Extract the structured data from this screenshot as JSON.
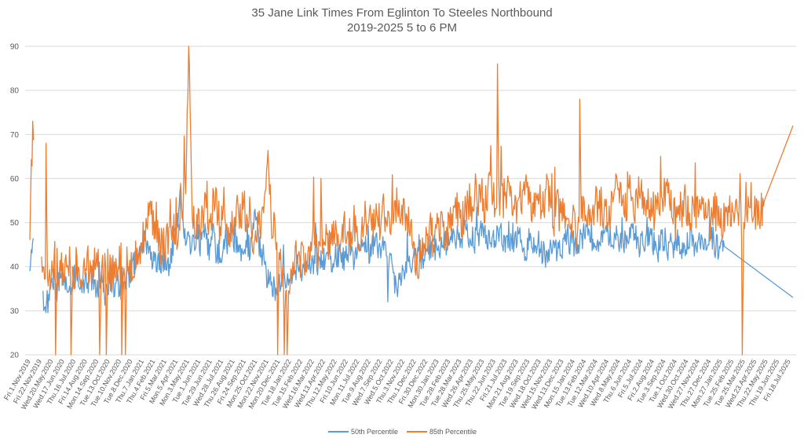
{
  "chart_data": {
    "type": "line",
    "title": "35 Jane Link Times From Eglinton To Steeles Northbound",
    "subtitle": "2019-2025 5 to 6 PM",
    "xlabel": "",
    "ylabel": "",
    "ylim": [
      20,
      90
    ],
    "yticks": [
      20,
      30,
      40,
      50,
      60,
      70,
      80,
      90
    ],
    "grid": true,
    "legend_position": "bottom",
    "x_tick_labels": [
      "Fri.1.Nov.2019",
      "Fri.22.Nov.2019",
      "Wed.20.May.2020",
      "Wed.17.Jun.2020",
      "Thu.16.Jul.2020",
      "Fri.14.Aug.2020",
      "Mon.14.Sep.2020",
      "Tue.13.Oct.2020",
      "Tue.10.Nov.2020",
      "Tue.8.Dec.2020",
      "Thu.7.Jan.2021",
      "Thu.4.Feb.2021",
      "Fri.5.Mar.2021",
      "Mon.5.Apr.2021",
      "Mon.3.May.2021",
      "Tue.1.Jun.2021",
      "Tue.29.Jun.2021",
      "Wed.28.Jul.2021",
      "Thu.26.Aug.2021",
      "Fri.24.Sep.2021",
      "Mon.25.Oct.2021",
      "Mon.22.Nov.2021",
      "Mon.20.Dec.2021",
      "Tue.18.Jan.2022",
      "Tue.15.Feb.2022",
      "Wed.16.Mar.2022",
      "Wed.13.Apr.2022",
      "Thu.12.May.2022",
      "Fri.10.Jun.2022",
      "Mon.11.Jul.2022",
      "Tue.9.Aug.2022",
      "Wed.7.Sep.2022",
      "Wed.5.Oct.2022",
      "Thu.3.Nov.2022",
      "Thu.1.Dec.2022",
      "Fri.30.Dec.2022",
      "Mon.30.Jan.2023",
      "Tue.28.Feb.2023",
      "Tue.28.Mar.2023",
      "Wed.26.Apr.2023",
      "Thu.25.May.2023",
      "Thu.22.Jun.2023",
      "Fri.21.Jul.2023",
      "Mon.21.Aug.2023",
      "Tue.19.Sep.2023",
      "Wed.18.Oct.2023",
      "Wed.15.Nov.2023",
      "Wed.13.Dec.2023",
      "Mon.15.Jan.2024",
      "Tue.13.Feb.2024",
      "Tue.12.Mar.2024",
      "Wed.10.Apr.2024",
      "Wed.8.May.2024",
      "Thu.6.Jun.2024",
      "Fri.5.Jul.2024",
      "Fri.2.Aug.2024",
      "Tue.3.Sep.2024",
      "Tue.1.Oct.2024",
      "Wed.30.Oct.2024",
      "Wed.27.Nov.2024",
      "Thu.27.Dec.2024",
      "Mon.27.Jan.2025",
      "Tue.25.Feb.2025",
      "Tue.25.Mar.2025",
      "Wed.23.Apr.2025",
      "Thu.22.May.2025",
      "Thu.19.Jun.2025",
      "Fri.18.Jul.2025"
    ],
    "series": [
      {
        "name": "50th Percentile",
        "color": "#5b9bd5",
        "values": [
          39,
          44,
          41,
          37,
          33,
          31,
          32,
          35,
          36,
          35,
          37,
          36,
          35,
          37,
          36,
          38,
          37,
          35,
          38,
          36,
          37,
          37,
          36,
          35,
          38,
          34,
          36,
          37,
          36,
          37,
          35,
          36,
          37,
          38,
          40,
          41,
          42,
          44,
          47,
          43,
          42,
          41,
          40,
          42,
          41,
          42,
          40,
          43,
          45,
          50,
          57,
          48,
          45,
          46,
          44,
          47,
          44,
          46,
          48,
          46,
          43,
          48,
          42,
          44,
          43,
          47,
          45,
          48,
          45,
          46,
          44,
          41,
          46,
          44,
          47,
          53,
          45,
          43,
          42,
          37,
          36,
          35,
          34,
          36,
          38,
          37,
          38,
          37,
          39,
          40,
          38,
          39,
          41,
          40,
          41,
          42,
          40,
          41,
          42,
          43,
          41,
          42,
          43,
          42,
          41,
          43,
          44,
          43,
          42,
          44,
          43,
          45,
          44,
          43,
          45,
          46,
          44,
          43,
          45,
          44,
          43,
          38,
          35,
          38,
          39,
          40,
          41,
          40,
          42,
          43,
          42,
          41,
          43,
          44,
          45,
          44,
          43,
          45,
          46,
          45,
          47,
          46,
          47,
          45,
          47,
          48,
          46,
          47,
          46,
          47,
          48,
          47,
          46,
          45,
          47,
          46,
          48,
          47,
          46,
          45,
          47,
          46,
          47,
          48,
          45,
          43,
          46,
          44,
          45,
          46,
          44,
          43,
          42,
          44,
          45,
          44,
          43,
          44,
          46,
          45,
          46,
          44,
          45,
          46,
          47,
          49,
          47,
          46,
          47,
          46,
          45,
          47,
          48,
          47,
          46,
          47,
          46,
          45,
          46,
          47,
          48,
          47,
          46,
          45,
          47,
          45,
          47,
          46,
          45,
          44,
          46,
          45,
          44,
          45,
          44,
          46,
          45,
          43,
          44,
          45,
          46,
          44,
          45,
          46,
          44,
          45,
          46,
          47,
          45,
          44,
          46,
          45
        ],
        "outliers": [
          [
            0,
            39
          ],
          [
            18,
            34
          ],
          [
            119,
            32
          ],
          [
            254,
            33
          ]
        ]
      },
      {
        "name": "85th Percentile",
        "color": "#ed7d31",
        "values": [
          50,
          73,
          46,
          55,
          37,
          36,
          37,
          38,
          42,
          38,
          39,
          38,
          41,
          40,
          39,
          41,
          39,
          38,
          41,
          39,
          40,
          40,
          39,
          38,
          41,
          38,
          39,
          41,
          40,
          41,
          39,
          40,
          41,
          42,
          44,
          45,
          47,
          49,
          55,
          48,
          47,
          45,
          44,
          47,
          46,
          49,
          46,
          50,
          52,
          58,
          90,
          53,
          50,
          52,
          49,
          55,
          49,
          51,
          56,
          53,
          47,
          56,
          45,
          49,
          48,
          54,
          50,
          55,
          51,
          53,
          48,
          44,
          53,
          49,
          55,
          65,
          50,
          48,
          47,
          40,
          39,
          38,
          37,
          40,
          44,
          42,
          43,
          42,
          45,
          46,
          43,
          45,
          47,
          45,
          46,
          48,
          46,
          47,
          48,
          50,
          47,
          48,
          50,
          49,
          47,
          50,
          51,
          50,
          48,
          51,
          50,
          53,
          52,
          49,
          53,
          55,
          51,
          50,
          53,
          51,
          50,
          43,
          39,
          44,
          45,
          47,
          48,
          46,
          49,
          50,
          48,
          47,
          50,
          52,
          54,
          52,
          50,
          53,
          55,
          53,
          57,
          54,
          57,
          53,
          57,
          58,
          55,
          56,
          54,
          55,
          58,
          56,
          54,
          52,
          56,
          53,
          58,
          56,
          54,
          52,
          56,
          53,
          55,
          58,
          53,
          50,
          54,
          51,
          52,
          54,
          51,
          50,
          48,
          51,
          53,
          51,
          50,
          51,
          55,
          53,
          54,
          51,
          52,
          54,
          56,
          62,
          55,
          53,
          55,
          54,
          52,
          55,
          57,
          55,
          53,
          55,
          53,
          52,
          53,
          55,
          57,
          55,
          53,
          51,
          55,
          52,
          55,
          53,
          52,
          51,
          54,
          52,
          51,
          52,
          50,
          53,
          52,
          49,
          50,
          52,
          54,
          51,
          52,
          54,
          50,
          51,
          53,
          55,
          52,
          50,
          53,
          52
        ],
        "spikes": [
          [
            1,
            73
          ],
          [
            5,
            68
          ],
          [
            50,
            90
          ],
          [
            147,
            86
          ],
          [
            173,
            78
          ],
          [
            240,
            72
          ]
        ],
        "drops": [
          [
            2,
            20
          ],
          [
            8,
            20
          ],
          [
            13,
            20
          ],
          [
            22,
            20
          ],
          [
            24,
            20
          ],
          [
            29,
            20
          ],
          [
            30,
            20
          ],
          [
            78,
            20
          ],
          [
            80,
            20
          ],
          [
            81,
            20
          ],
          [
            224,
            20
          ]
        ]
      }
    ]
  }
}
